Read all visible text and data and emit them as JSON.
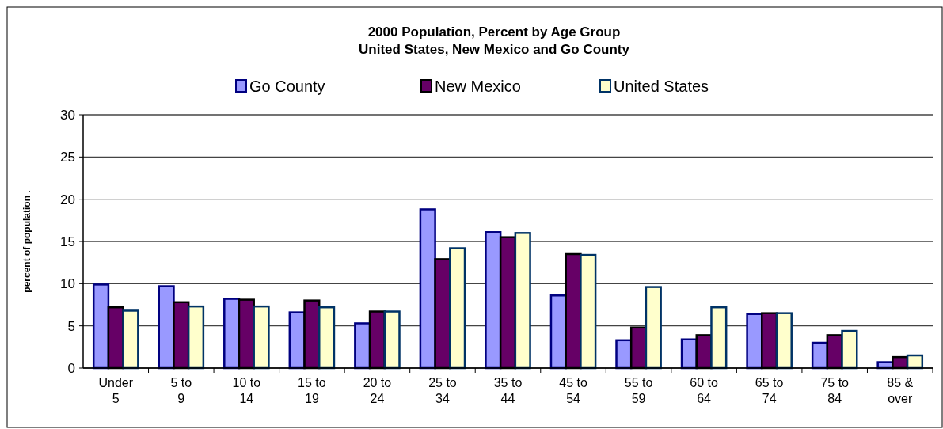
{
  "chart_data": {
    "type": "bar",
    "title": "2000 Population, Percent by Age Group",
    "subtitle": "United States, New Mexico and Go County",
    "ylabel": "percent of population  .",
    "categories": [
      "Under 5",
      "5 to 9",
      "10 to 14",
      "15 to 19",
      "20 to 24",
      "25 to 34",
      "35 to 44",
      "45 to 54",
      "55 to 59",
      "60 to 64",
      "65 to 74",
      "75 to 84",
      "85 & over"
    ],
    "series": [
      {
        "name": "Go County",
        "color": "#9999ff",
        "values": [
          9.9,
          9.7,
          8.2,
          6.6,
          5.3,
          18.8,
          16.1,
          8.6,
          3.3,
          3.4,
          6.4,
          3.0,
          0.7
        ]
      },
      {
        "name": "New Mexico",
        "color": "#660066",
        "values": [
          7.2,
          7.8,
          8.1,
          8.0,
          6.7,
          12.9,
          15.5,
          13.5,
          4.8,
          3.9,
          6.5,
          3.9,
          1.3
        ]
      },
      {
        "name": "United States",
        "color": "#ffffcc",
        "values": [
          6.8,
          7.3,
          7.3,
          7.2,
          6.7,
          14.2,
          16.0,
          13.4,
          9.6,
          7.2,
          6.5,
          4.4,
          1.5
        ]
      }
    ],
    "ylim": [
      0,
      30
    ],
    "yticks": [
      0,
      5,
      10,
      15,
      20,
      25,
      30
    ],
    "grid": "y",
    "legend": "top"
  }
}
